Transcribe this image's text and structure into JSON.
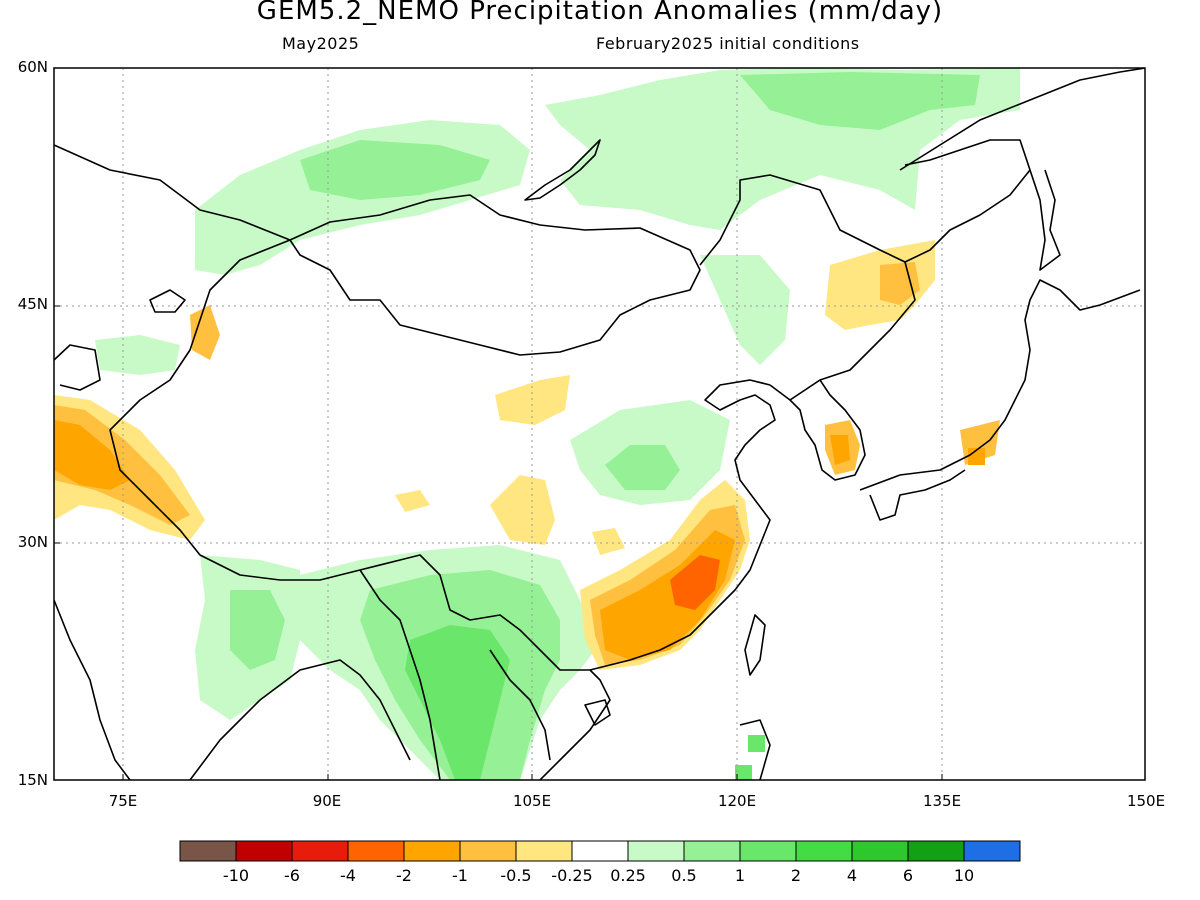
{
  "title": "GEM5.2_NEMO Precipitation Anomalies (mm/day)",
  "subtitle_left": "May2025",
  "subtitle_right": "February2025 initial conditions",
  "map": {
    "lat_labels": [
      "60N",
      "45N",
      "30N",
      "15N"
    ],
    "lon_labels": [
      "75E",
      "90E",
      "105E",
      "120E",
      "135E",
      "150E"
    ],
    "lat_values": [
      60,
      45,
      30,
      15
    ],
    "lon_values": [
      75,
      90,
      105,
      120,
      135,
      150
    ],
    "extent": {
      "lon_min": 70,
      "lon_max": 150,
      "lat_min": 15,
      "lat_max": 60
    },
    "gridlines": "dotted"
  },
  "legend": {
    "colors": [
      "#795548",
      "#c00000",
      "#e81c0c",
      "#ff6400",
      "#ffa500",
      "#ffc040",
      "#ffe680",
      "#ffffff",
      "#c8fac8",
      "#96f096",
      "#6ae66a",
      "#44dc44",
      "#2ec82e",
      "#14a014",
      "#1e6ee6"
    ],
    "labels": [
      "-10",
      "-6",
      "-4",
      "-2",
      "-1",
      "-0.5",
      "-0.25",
      "0.25",
      "0.5",
      "1",
      "2",
      "4",
      "6",
      "10"
    ]
  }
}
